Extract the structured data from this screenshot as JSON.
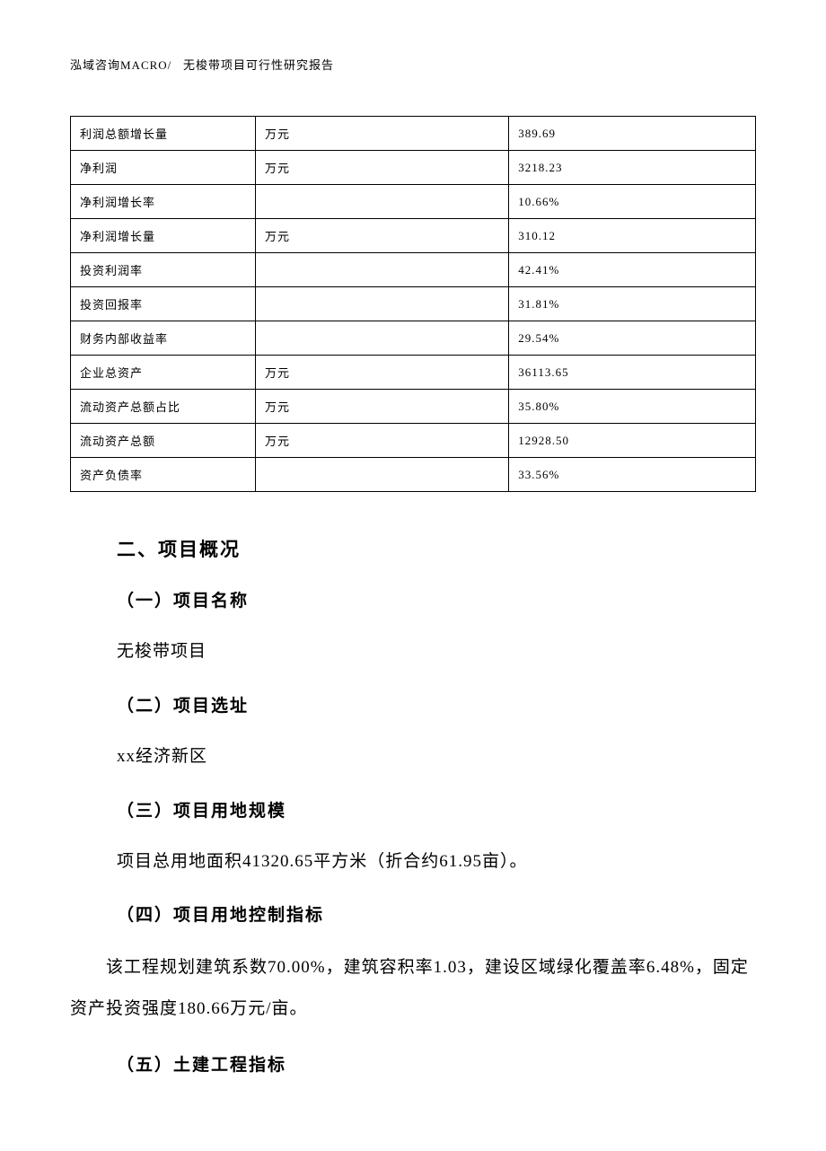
{
  "header": {
    "company": "泓域咨询MACRO/",
    "title": "无梭带项目可行性研究报告"
  },
  "table": {
    "rows": [
      {
        "label": "利润总额增长量",
        "unit": "万元",
        "value": "389.69"
      },
      {
        "label": "净利润",
        "unit": "万元",
        "value": "3218.23"
      },
      {
        "label": "净利润增长率",
        "unit": "",
        "value": "10.66%"
      },
      {
        "label": "净利润增长量",
        "unit": "万元",
        "value": "310.12"
      },
      {
        "label": "投资利润率",
        "unit": "",
        "value": "42.41%"
      },
      {
        "label": "投资回报率",
        "unit": "",
        "value": "31.81%"
      },
      {
        "label": "财务内部收益率",
        "unit": "",
        "value": "29.54%"
      },
      {
        "label": "企业总资产",
        "unit": "万元",
        "value": "36113.65"
      },
      {
        "label": "流动资产总额占比",
        "unit": "万元",
        "value": "35.80%"
      },
      {
        "label": "流动资产总额",
        "unit": "万元",
        "value": "12928.50"
      },
      {
        "label": "资产负债率",
        "unit": "",
        "value": "33.56%"
      }
    ]
  },
  "sections": {
    "main_title": "二、项目概况",
    "s1": {
      "title": "（一）项目名称",
      "text": "无梭带项目"
    },
    "s2": {
      "title": "（二）项目选址",
      "text": "xx经济新区"
    },
    "s3": {
      "title": "（三）项目用地规模",
      "text": "项目总用地面积41320.65平方米（折合约61.95亩）。"
    },
    "s4": {
      "title": "（四）项目用地控制指标",
      "text": "　　该工程规划建筑系数70.00%，建筑容积率1.03，建设区域绿化覆盖率6.48%，固定资产投资强度180.66万元/亩。"
    },
    "s5": {
      "title": "（五）土建工程指标"
    }
  }
}
